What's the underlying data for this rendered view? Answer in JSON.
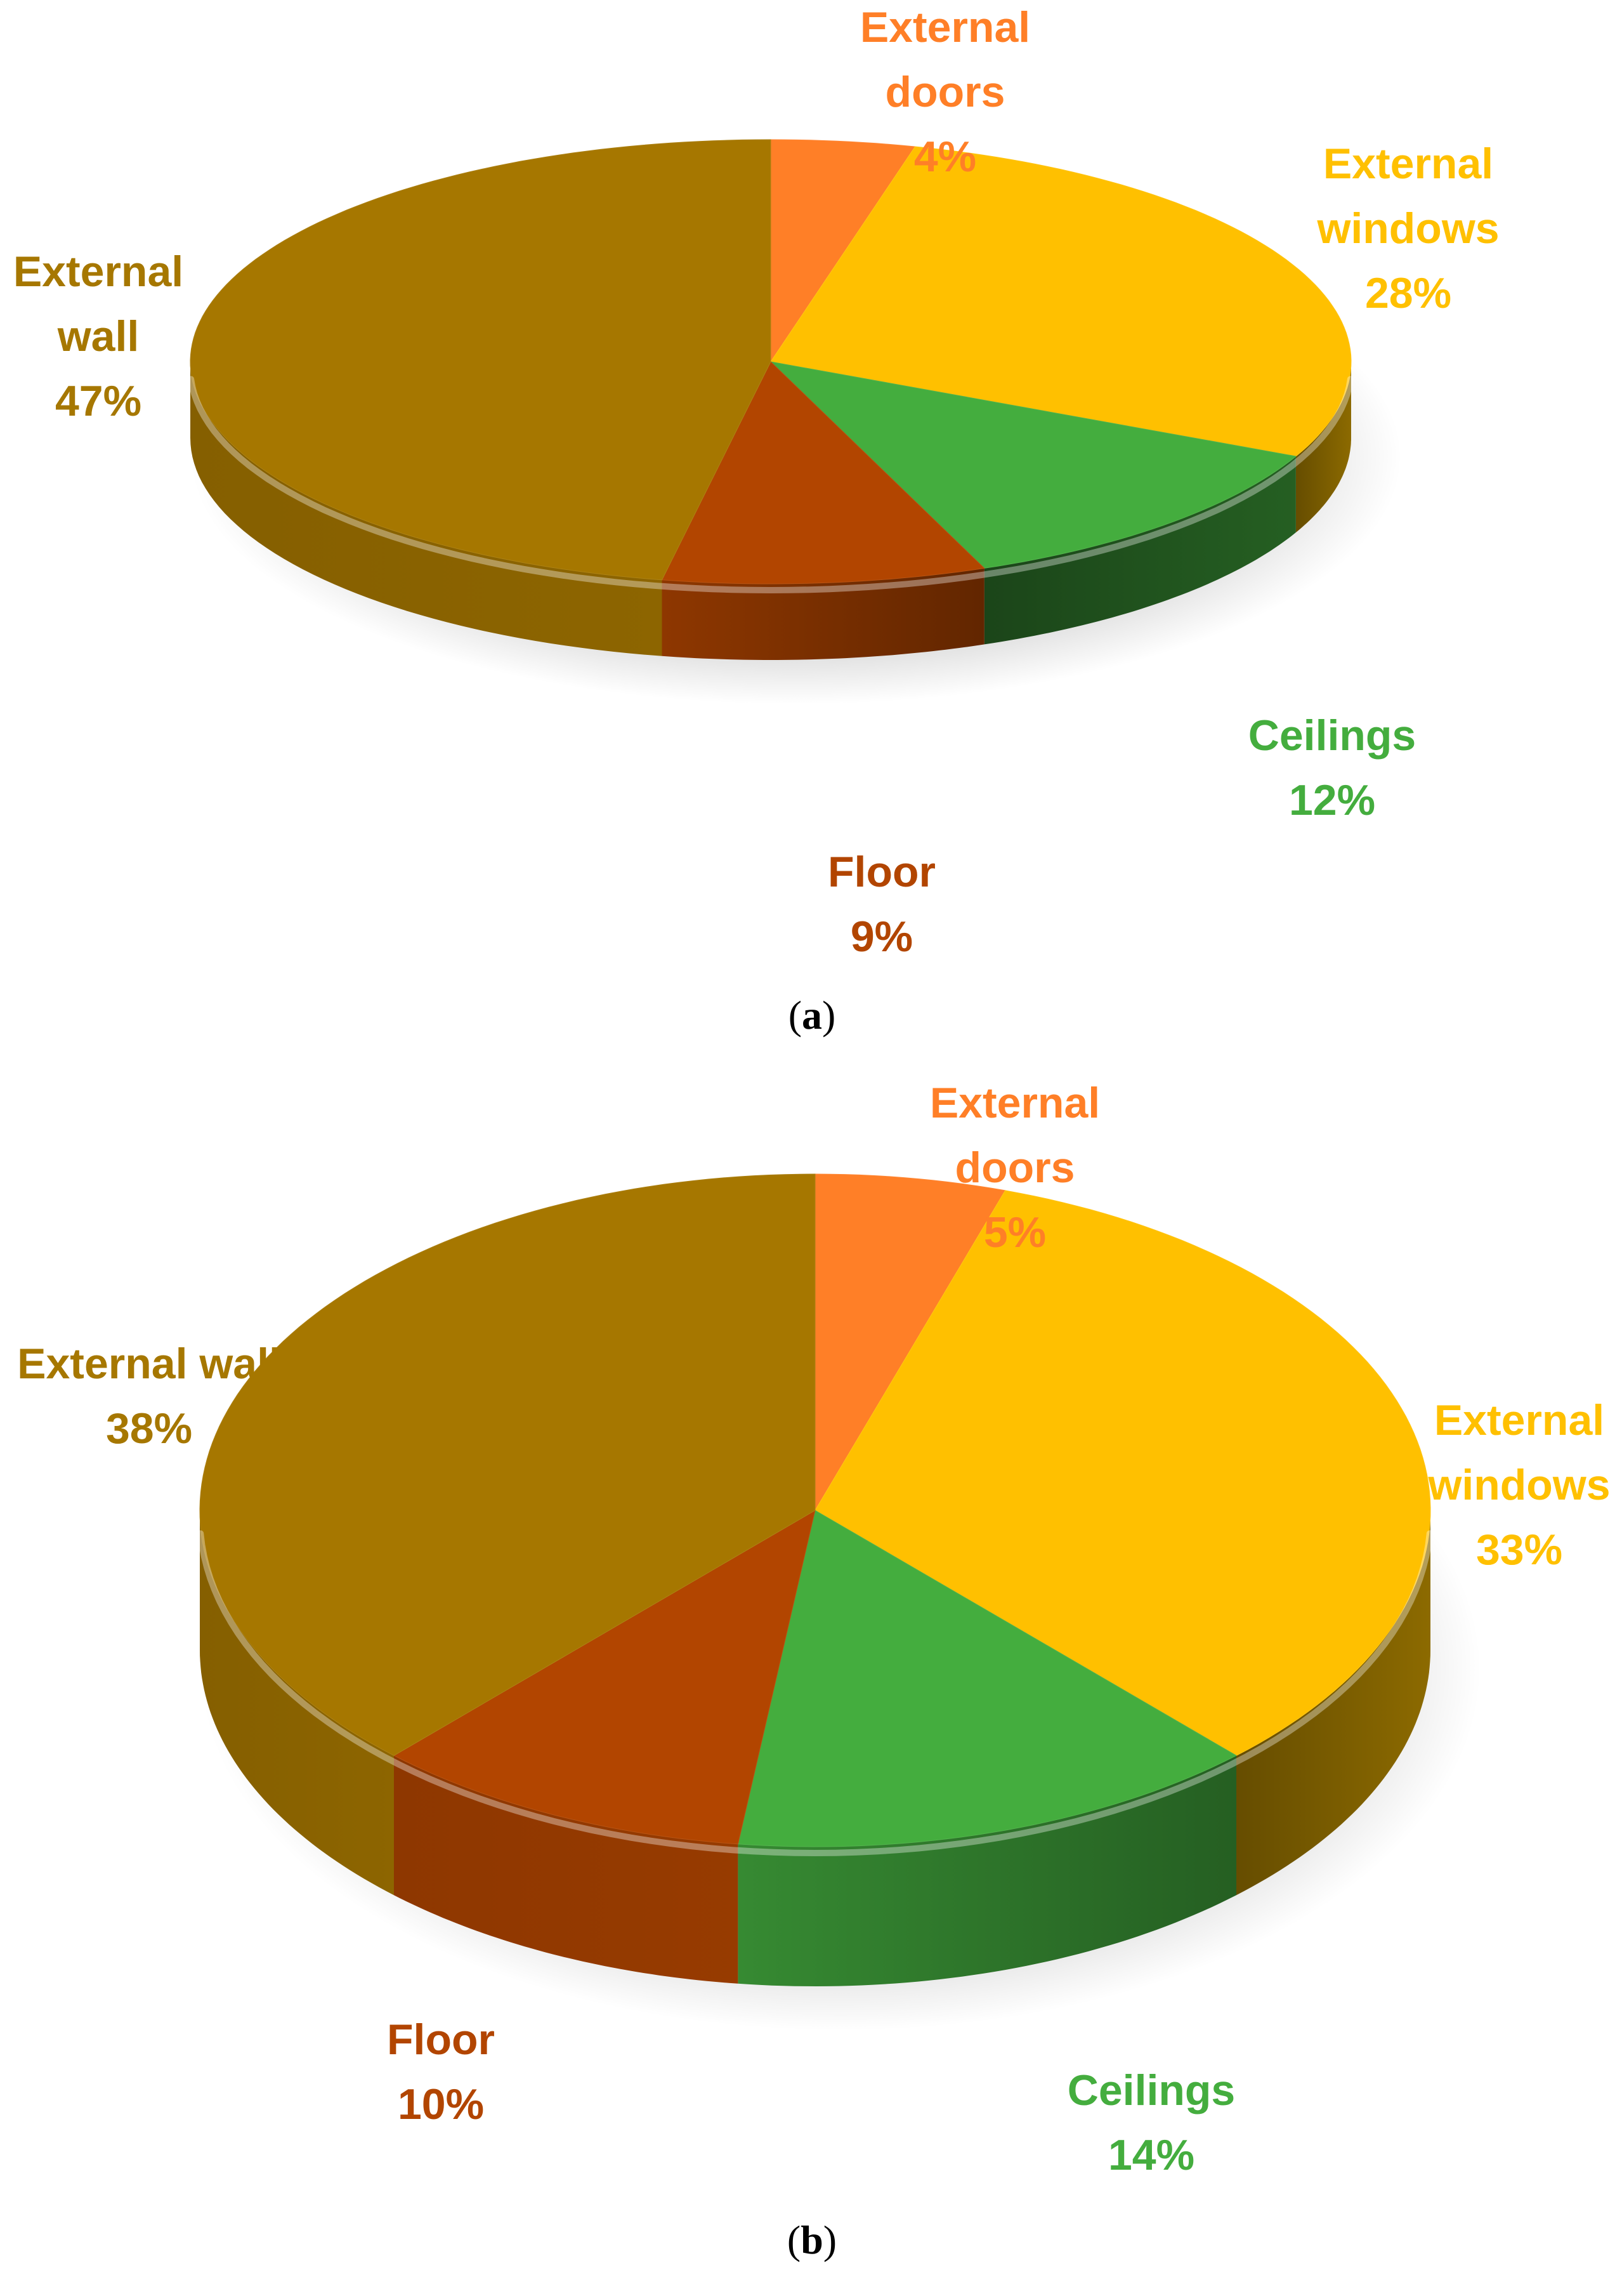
{
  "chart_data": [
    {
      "type": "pie",
      "panel_label": "a",
      "slices": [
        {
          "name": "External doors",
          "name_lines": [
            "External",
            "doors"
          ],
          "percent_label": "4%",
          "value": 4,
          "color": "#FF7F27"
        },
        {
          "name": "External windows",
          "name_lines": [
            "External",
            "windows"
          ],
          "percent_label": "28%",
          "value": 28,
          "color": "#FFC000"
        },
        {
          "name": "Ceilings",
          "name_lines": [
            "Ceilings"
          ],
          "percent_label": "12%",
          "value": 12,
          "color": "#44AD3E"
        },
        {
          "name": "Floor",
          "name_lines": [
            "Floor"
          ],
          "percent_label": "9%",
          "value": 9,
          "color": "#B24500"
        },
        {
          "name": "External wall",
          "name_lines": [
            "External",
            "wall"
          ],
          "percent_label": "47%",
          "value": 47,
          "color": "#A67700"
        }
      ]
    },
    {
      "type": "pie",
      "panel_label": "b",
      "slices": [
        {
          "name": "External doors",
          "name_lines": [
            "External",
            "doors"
          ],
          "percent_label": "5%",
          "value": 5,
          "color": "#FF7F27"
        },
        {
          "name": "External windows",
          "name_lines": [
            "External",
            "windows"
          ],
          "percent_label": "33%",
          "value": 33,
          "color": "#FFC000"
        },
        {
          "name": "Ceilings",
          "name_lines": [
            "Ceilings"
          ],
          "percent_label": "14%",
          "value": 14,
          "color": "#44AD3E"
        },
        {
          "name": "Floor",
          "name_lines": [
            "Floor"
          ],
          "percent_label": "10%",
          "value": 10,
          "color": "#B24500"
        },
        {
          "name": "External wall",
          "name_lines": [
            "External wall"
          ],
          "percent_label": "38%",
          "value": 38,
          "color": "#A67700"
        }
      ]
    }
  ]
}
